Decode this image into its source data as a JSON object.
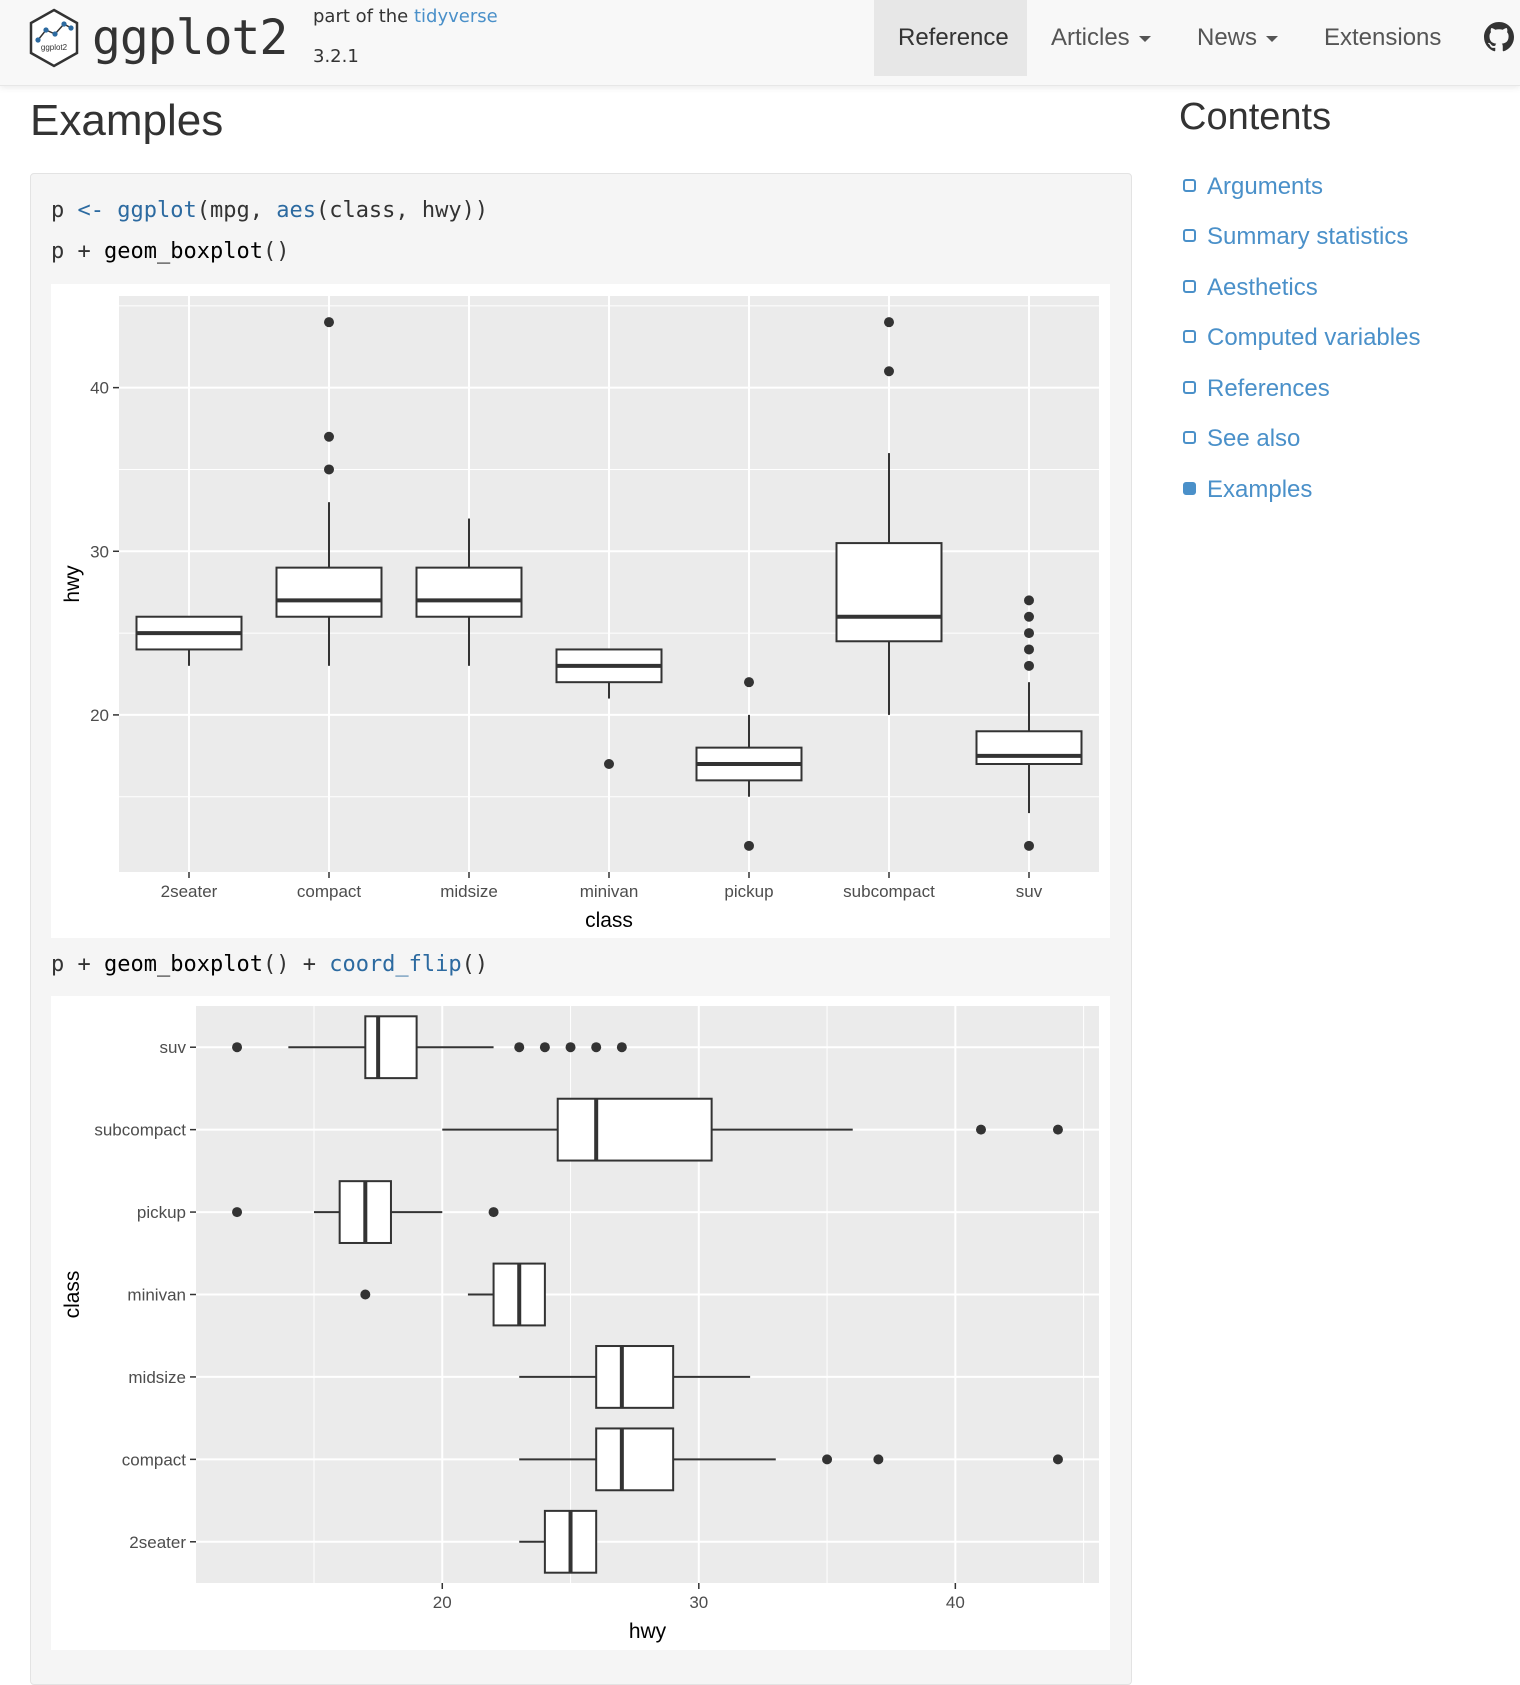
{
  "header": {
    "brand": "ggplot2",
    "part_of_prefix": "part of the ",
    "part_of_link": "tidyverse",
    "version": "3.2.1",
    "logo_text": "ggplot2",
    "nav": [
      {
        "label": "Reference",
        "active": true
      },
      {
        "label": "Articles",
        "dropdown": true
      },
      {
        "label": "News",
        "dropdown": true
      },
      {
        "label": "Extensions"
      }
    ],
    "github_icon": "github-icon"
  },
  "main": {
    "heading": "Examples",
    "code_line1": {
      "p": "p",
      "assign": " <- ",
      "fn": "ggplot",
      "args": "(mpg, ",
      "fn2": "aes",
      "args2": "(class, hwy))"
    },
    "code_line2": {
      "p": "p",
      "plus": " + ",
      "fn": "geom_boxplot",
      "args": "()"
    },
    "code_line3": {
      "p": "p",
      "plus": " + ",
      "fn": "geom_boxplot",
      "args": "()",
      "plus2": " + ",
      "fn2": "coord_flip",
      "args2": "()"
    }
  },
  "sidebar": {
    "title": "Contents",
    "items": [
      {
        "label": "Arguments",
        "active": false
      },
      {
        "label": "Summary statistics",
        "active": false
      },
      {
        "label": "Aesthetics",
        "active": false
      },
      {
        "label": "Computed variables",
        "active": false
      },
      {
        "label": "References",
        "active": false
      },
      {
        "label": "See also",
        "active": false
      },
      {
        "label": "Examples",
        "active": true
      }
    ]
  },
  "colors": {
    "accent": "#4a90c9",
    "panel_bg": "#ebebeb",
    "grid": "#ffffff",
    "box_line": "#333333"
  },
  "chart_data": [
    {
      "type": "boxplot",
      "orientation": "vertical",
      "xlabel": "class",
      "ylabel": "hwy",
      "ylim": [
        10.4,
        45.6
      ],
      "yticks": [
        20,
        30,
        40
      ],
      "grid": true,
      "categories": [
        "2seater",
        "compact",
        "midsize",
        "minivan",
        "pickup",
        "subcompact",
        "suv"
      ],
      "boxes": [
        {
          "category": "2seater",
          "lower_whisker": 23,
          "q1": 24,
          "median": 25,
          "q3": 26,
          "upper_whisker": 26,
          "outliers": []
        },
        {
          "category": "compact",
          "lower_whisker": 23,
          "q1": 26,
          "median": 27,
          "q3": 29,
          "upper_whisker": 33,
          "outliers": [
            35,
            37,
            44
          ]
        },
        {
          "category": "midsize",
          "lower_whisker": 23,
          "q1": 26,
          "median": 27,
          "q3": 29,
          "upper_whisker": 32,
          "outliers": []
        },
        {
          "category": "minivan",
          "lower_whisker": 21,
          "q1": 22,
          "median": 23,
          "q3": 24,
          "upper_whisker": 24,
          "outliers": [
            17
          ]
        },
        {
          "category": "pickup",
          "lower_whisker": 15,
          "q1": 16,
          "median": 17,
          "q3": 18,
          "upper_whisker": 20,
          "outliers": [
            12,
            22
          ]
        },
        {
          "category": "subcompact",
          "lower_whisker": 20,
          "q1": 24.5,
          "median": 26,
          "q3": 30.5,
          "upper_whisker": 36,
          "outliers": [
            41,
            44
          ]
        },
        {
          "category": "suv",
          "lower_whisker": 14,
          "q1": 17,
          "median": 17.5,
          "q3": 19,
          "upper_whisker": 22,
          "outliers": [
            12,
            23,
            24,
            25,
            26,
            27
          ]
        }
      ]
    },
    {
      "type": "boxplot",
      "orientation": "horizontal",
      "xlabel": "hwy",
      "ylabel": "class",
      "xlim": [
        10.4,
        45.6
      ],
      "xticks": [
        20,
        30,
        40
      ],
      "grid": true,
      "same_data_as": 0
    }
  ]
}
